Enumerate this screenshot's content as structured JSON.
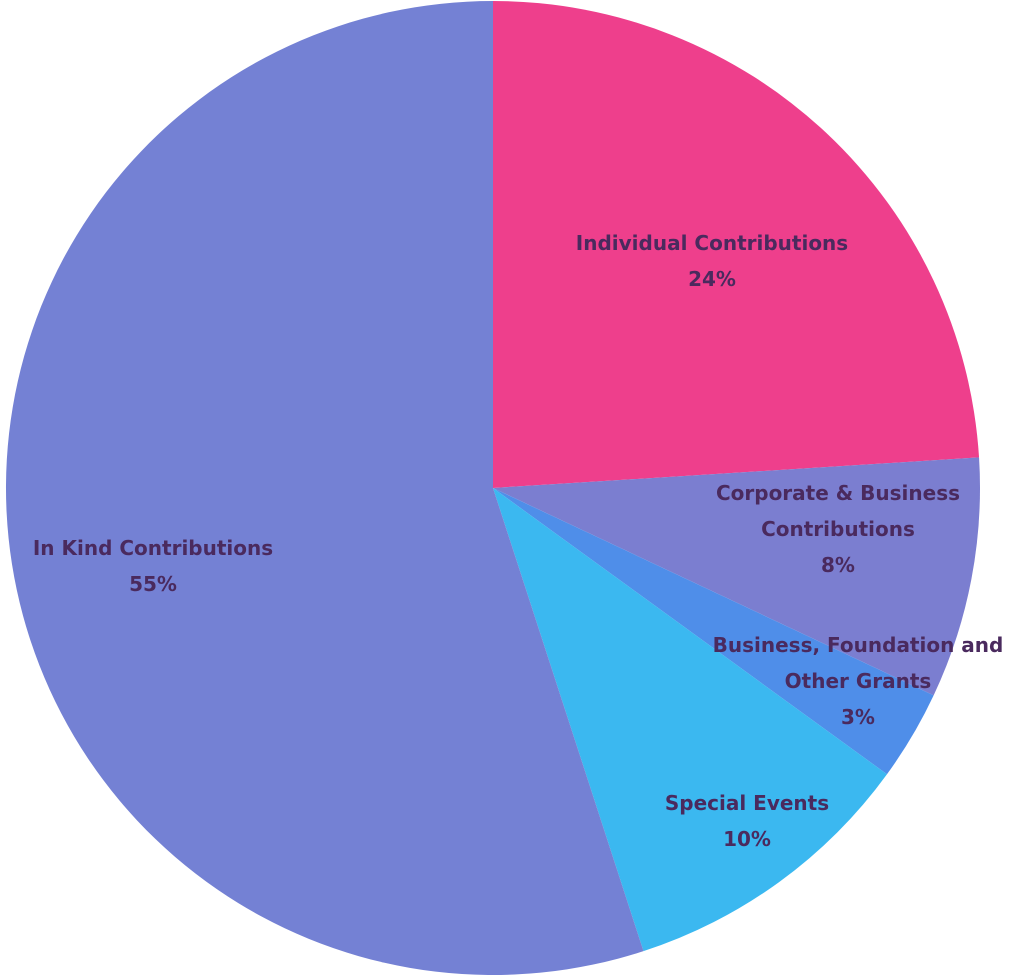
{
  "chart_data": {
    "type": "pie",
    "title": "",
    "slices": [
      {
        "label_lines": [
          "Individual Contributions"
        ],
        "percent_label": "24%",
        "value": 24,
        "color": "#ee3f8c"
      },
      {
        "label_lines": [
          "Corporate & Business",
          "Contributions"
        ],
        "percent_label": "8%",
        "value": 8,
        "color": "#7b7ed0"
      },
      {
        "label_lines": [
          "Business, Foundation and",
          "Other Grants"
        ],
        "percent_label": "3%",
        "value": 3,
        "color": "#4f8ee9"
      },
      {
        "label_lines": [
          "Special Events"
        ],
        "percent_label": "10%",
        "value": 10,
        "color": "#3bb8f0"
      },
      {
        "label_lines": [
          "In Kind Contributions"
        ],
        "percent_label": "55%",
        "value": 55,
        "color": "#7481d4"
      }
    ],
    "start_angle_deg": 0,
    "direction": "clockwise",
    "legend": "none"
  }
}
